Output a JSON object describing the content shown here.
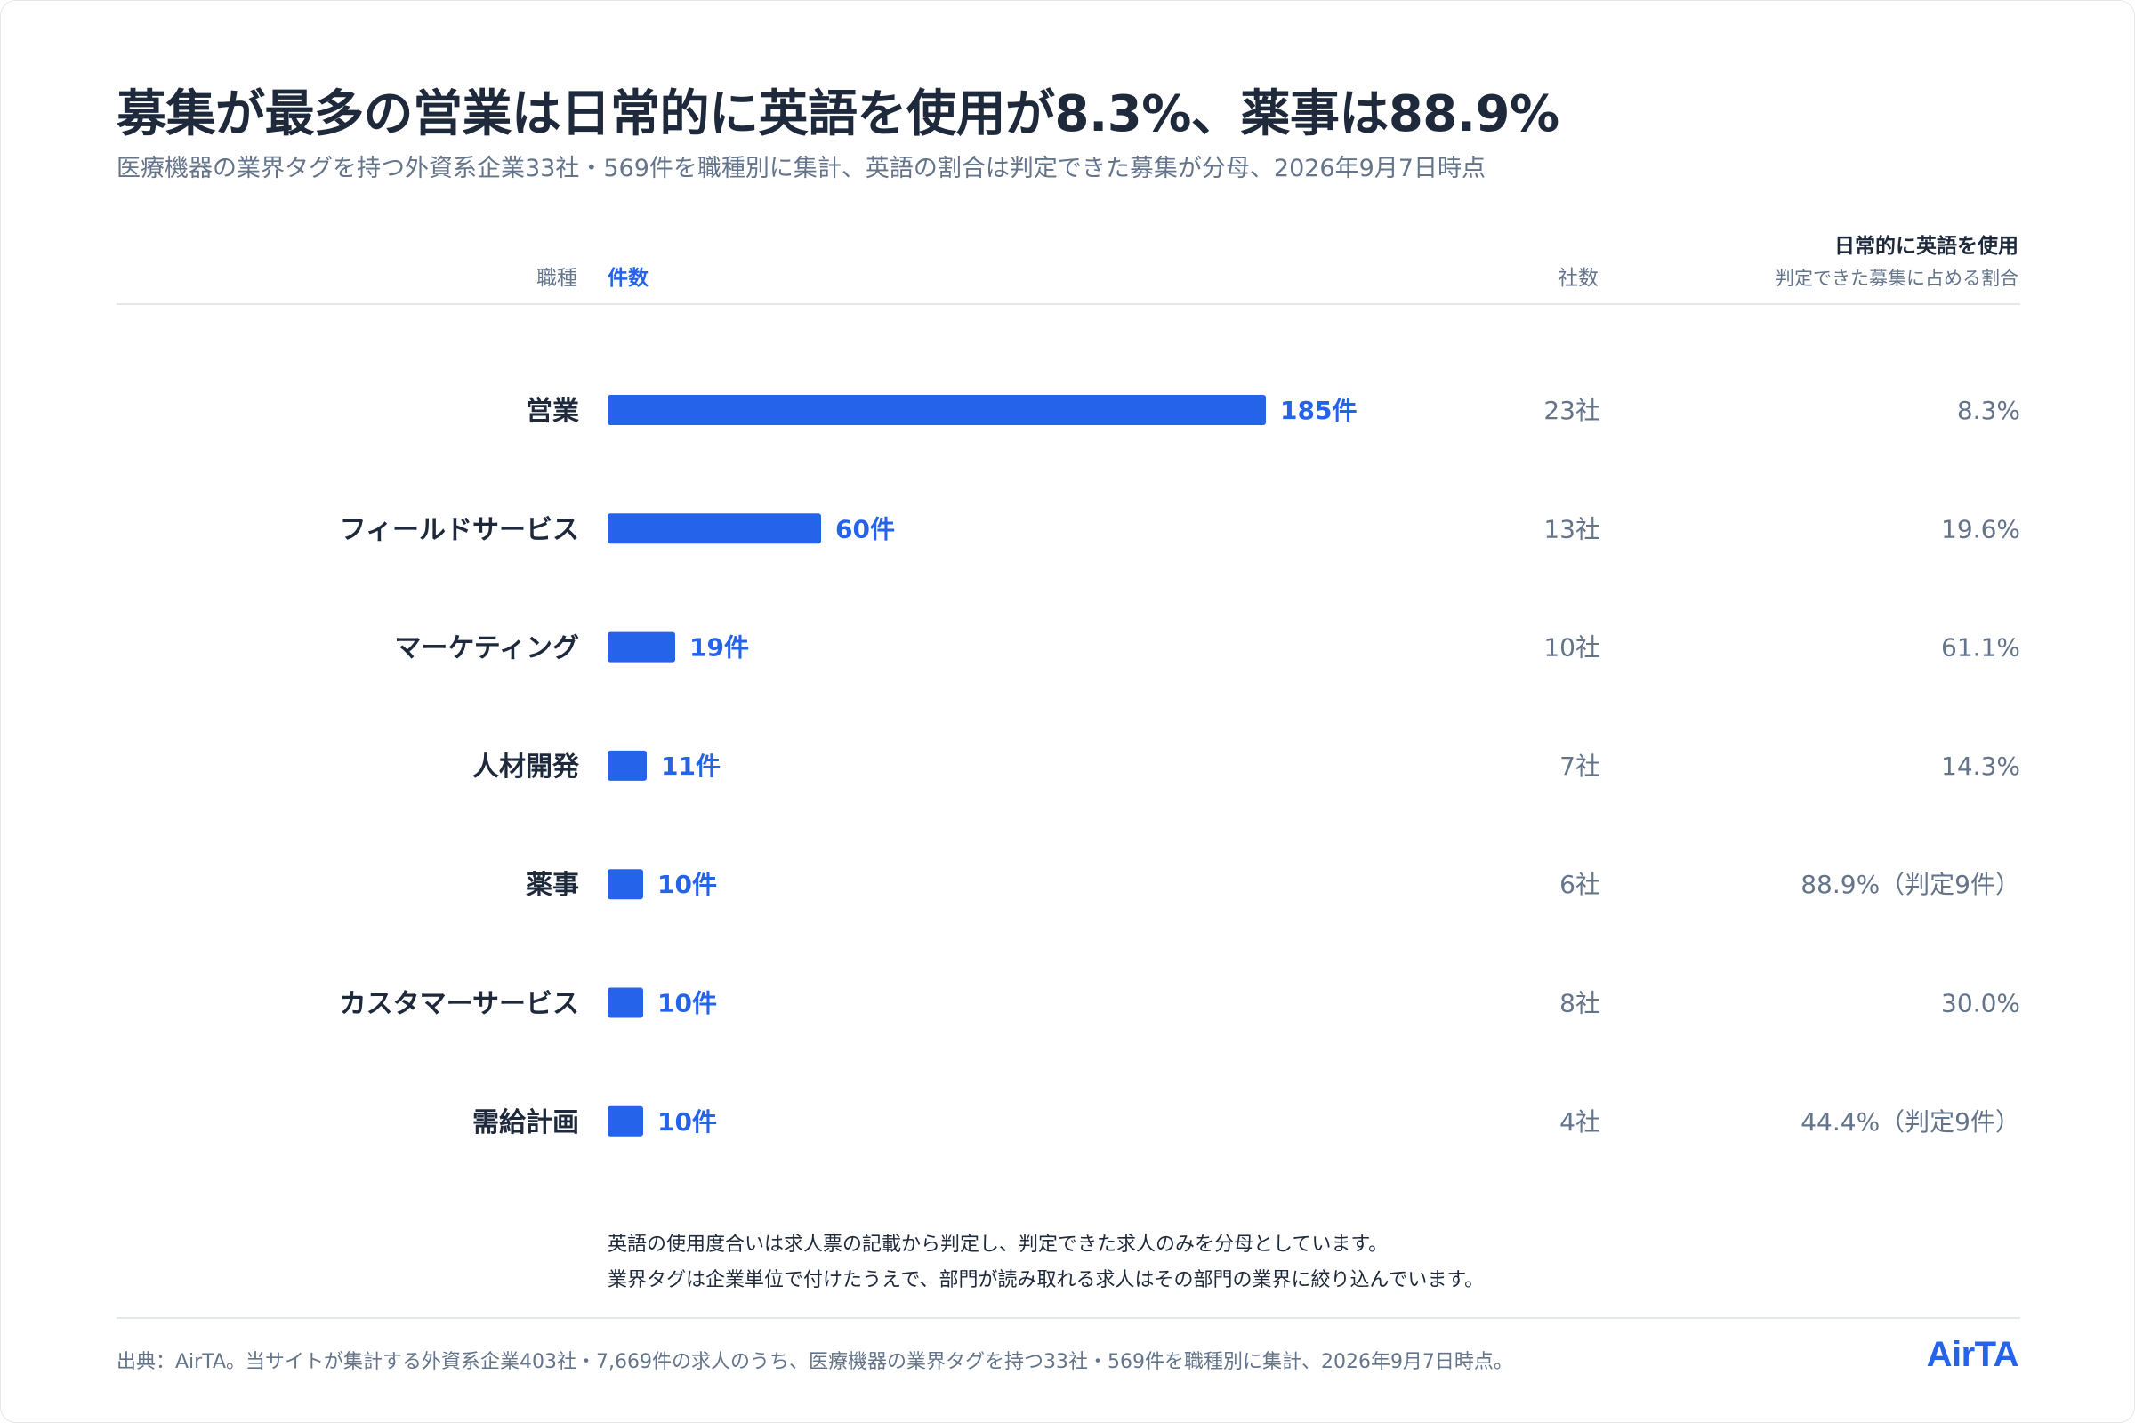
{
  "title": "募集が最多の営業は日常的に英語を使用が8.3%、薬事は88.9%",
  "subtitle": "医療機器の業界タグを持つ外資系企業33社・569件を職種別に集計、英語の割合は判定できた募集が分母、2026年9月7日時点",
  "headers": {
    "role": "職種",
    "count": "件数",
    "companies": "社数",
    "english": "日常的に英語を使用",
    "english_sub": "判定できた募集に占める割合"
  },
  "colors": {
    "bar": "#2563eb",
    "text": "#1e293b",
    "muted": "#64748b"
  },
  "chart_data": {
    "type": "bar",
    "orientation": "horizontal",
    "categories": [
      "営業",
      "フィールドサービス",
      "マーケティング",
      "人材開発",
      "薬事",
      "カスタマーサービス",
      "需給計画"
    ],
    "values": [
      185,
      60,
      19,
      11,
      10,
      10,
      10
    ],
    "value_labels": [
      "185件",
      "60件",
      "19件",
      "11件",
      "10件",
      "10件",
      "10件"
    ],
    "companies": [
      "23社",
      "13社",
      "10社",
      "7社",
      "6社",
      "8社",
      "4社"
    ],
    "english_rate": [
      "8.3%",
      "19.6%",
      "61.1%",
      "14.3%",
      "88.9%（判定9件）",
      "30.0%",
      "44.4%（判定9件）"
    ],
    "xlim": [
      0,
      185
    ]
  },
  "notes": [
    "英語の使用度合いは求人票の記載から判定し、判定できた求人のみを分母としています。",
    "業界タグは企業単位で付けたうえで、部門が読み取れる求人はその部門の業界に絞り込んでいます。"
  ],
  "footer": "出典：AirTA。当サイトが集計する外資系企業403社・7,669件の求人のうち、医療機器の業界タグを持つ33社・569件を職種別に集計、2026年9月7日時点。",
  "logo": "AirTA"
}
